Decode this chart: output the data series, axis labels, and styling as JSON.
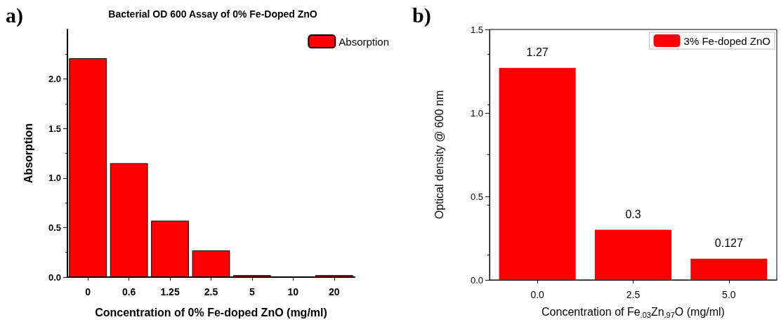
{
  "chart_data": [
    {
      "type": "bar",
      "title": "Bacterial OD 600 Assay of 0% Fe-Doped ZnO",
      "xlabel": "Concentration of 0% Fe-doped ZnO (mg/ml)",
      "ylabel": "Absorption",
      "annotations": [
        "a)"
      ],
      "categories": [
        "0",
        "0.6",
        "1.25",
        "2.5",
        "5",
        "10",
        "20"
      ],
      "series": [
        {
          "name": "Absorption",
          "color": "#ff0000",
          "values": [
            2.21,
            1.15,
            0.57,
            0.27,
            0.02,
            0,
            0.02
          ]
        }
      ],
      "ylim": [
        0,
        2.5
      ],
      "yticks": [
        {
          "value": 0,
          "label": "0.0"
        },
        {
          "value": 0.5,
          "label": "0.5"
        },
        {
          "value": 1,
          "label": "1.0"
        },
        {
          "value": 1.5,
          "label": "1.5"
        },
        {
          "value": 2,
          "label": "2.0"
        }
      ],
      "grid": false,
      "legend": "top right"
    },
    {
      "type": "bar",
      "xlabel": "Concentration of Fe$_{.03}$Zn$_{.97}$O (mg/ml)",
      "ylabel": "Optical density @ 600 nm",
      "annotations": [
        "b)"
      ],
      "categories": [
        "0.0",
        "2.5",
        "5.0"
      ],
      "series": [
        {
          "name": "3% Fe-doped ZnO",
          "color": "#ff0000",
          "values": [
            1.27,
            0.3,
            0.127
          ]
        }
      ],
      "ylim": [
        0,
        1.5
      ],
      "yticks": [
        {
          "value": 0,
          "label": "0.0"
        },
        {
          "value": 0.5,
          "label": "0.5"
        },
        {
          "value": 1,
          "label": "1.0"
        },
        {
          "value": 1.5,
          "label": "1.5"
        }
      ],
      "grid": false,
      "legend": "top right",
      "data_labels": true
    }
  ]
}
